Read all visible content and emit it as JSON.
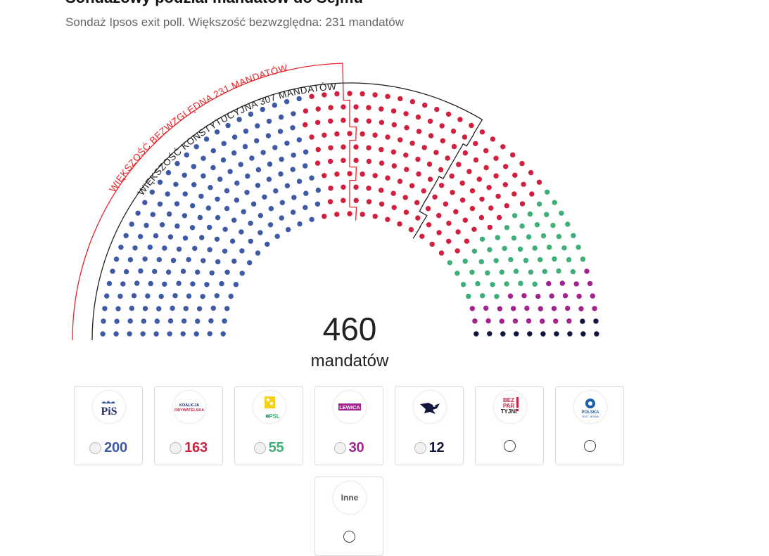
{
  "page": {
    "title": "Sondażowy podział mandatów do Sejmu",
    "subtitle": "Sondaż Ipsos exit poll. Większość bezwzględna: 231 mandatów"
  },
  "chart_data": {
    "type": "parliament-hemicycle",
    "total_seats": 460,
    "total_label": "460",
    "total_unit": "mandatów",
    "series": [
      {
        "id": "pis",
        "values": [
          200
        ],
        "color": "#3e59a5"
      },
      {
        "id": "ko",
        "values": [
          163
        ],
        "color": "#d11f3d"
      },
      {
        "id": "td",
        "values": [
          55
        ],
        "color": "#3daf77"
      },
      {
        "id": "lewica",
        "values": [
          30
        ],
        "color": "#a3238e"
      },
      {
        "id": "konfederacja",
        "values": [
          12
        ],
        "color": "#12163f"
      }
    ],
    "thresholds": [
      {
        "label": "WIĘKSZOŚĆ BEZWZGLĘDNA 231 MANDATÓW",
        "seats": 231,
        "color": "#e3262a"
      },
      {
        "label": "WIĘKSZOŚĆ KONSTYTUCYJNA 307 MANDATÓW",
        "seats": 307,
        "color": "#222222"
      }
    ]
  },
  "parties": [
    {
      "id": "pis",
      "logo_text": "PiS",
      "seats_label": "200",
      "color": "#3e59a5"
    },
    {
      "id": "ko",
      "logo_text": "KOALICJA OBYWATELSKA",
      "logo_line1": "KOALICJA",
      "logo_line2": "OBYWATELSKA",
      "seats_label": "163",
      "color": "#d11f3d"
    },
    {
      "id": "td",
      "logo_text": "PSL",
      "seats_label": "55",
      "color": "#3daf77"
    },
    {
      "id": "lewica",
      "logo_text": "LEWICA",
      "seats_label": "30",
      "color": "#a3238e"
    },
    {
      "id": "konfederacja",
      "logo_text": "",
      "seats_label": "12",
      "color": "#12163f"
    },
    {
      "id": "bezpartyjni",
      "logo_text": "BEZ PAR TYJNI",
      "logo_line1": "BEZ",
      "logo_line2": "PAR",
      "logo_line3": "TYJNI",
      "seats_label": "",
      "color": "#d11f3d"
    },
    {
      "id": "polska-jest-jedna",
      "logo_text": "POLSKA JEST JEDNA",
      "logo_line1": "POLSKA",
      "logo_line2": "JEST JEDNA",
      "seats_label": "",
      "color": "#1d5fa8"
    },
    {
      "id": "inne",
      "logo_text": "Inne",
      "seats_label": "",
      "color": "#555555"
    }
  ]
}
